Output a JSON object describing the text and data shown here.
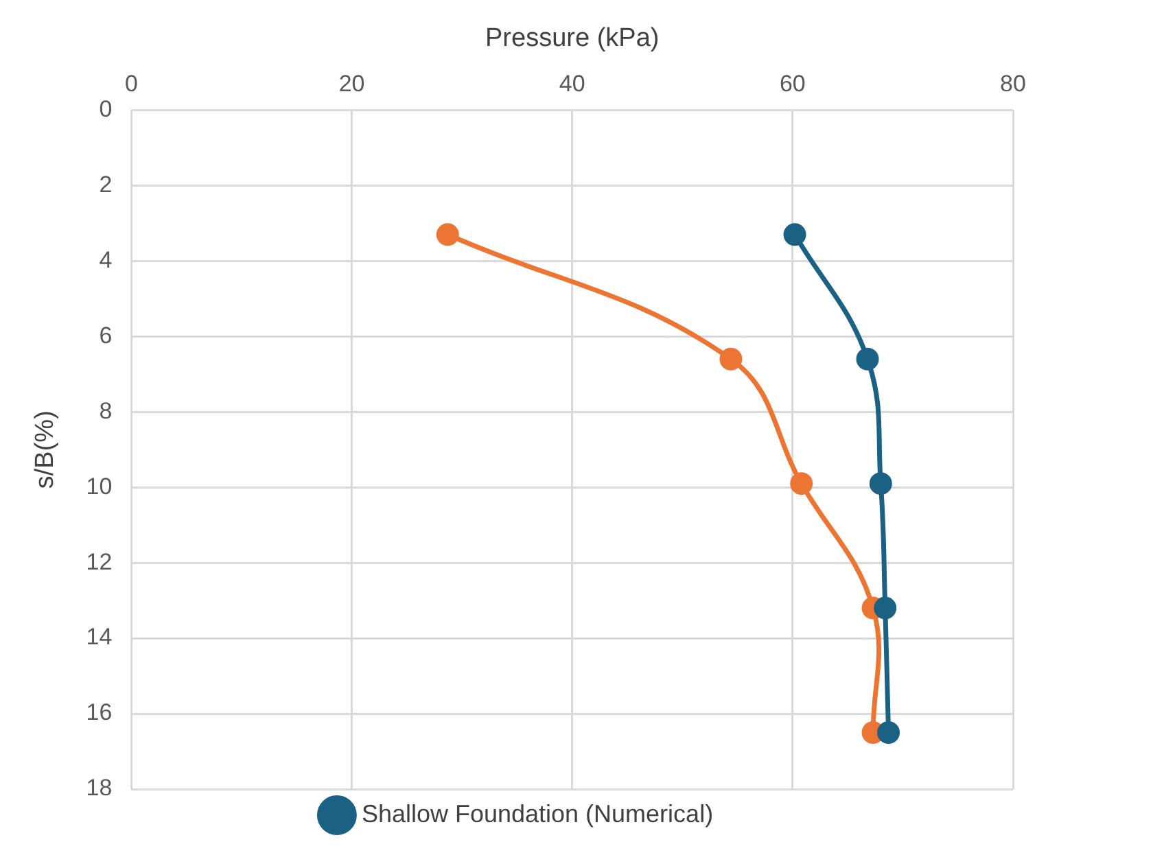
{
  "chart_data": {
    "type": "line",
    "xlabel": "Pressure (kPa)",
    "ylabel": "s/B(%)",
    "xlim": [
      0,
      80
    ],
    "xticks": [
      0,
      20,
      40,
      60,
      80
    ],
    "ylim": [
      18,
      0
    ],
    "yticks": [
      0,
      2,
      4,
      6,
      8,
      10,
      12,
      14,
      16,
      18
    ],
    "grid": true,
    "legend": "bottom",
    "marker": "circle",
    "line_style": "solid",
    "series": [
      {
        "name": "Shallow Foundation (Numerical)",
        "color": "#1a6184",
        "x": [
          60.2,
          66.8,
          68.0,
          68.4,
          68.7
        ],
        "values": [
          3.3,
          6.6,
          9.9,
          13.2,
          16.5
        ]
      },
      {
        "color": "#ed7533",
        "x": [
          28.7,
          54.4,
          60.8,
          67.3,
          67.3
        ],
        "values": [
          3.3,
          6.6,
          9.9,
          13.2,
          16.5
        ]
      }
    ]
  }
}
